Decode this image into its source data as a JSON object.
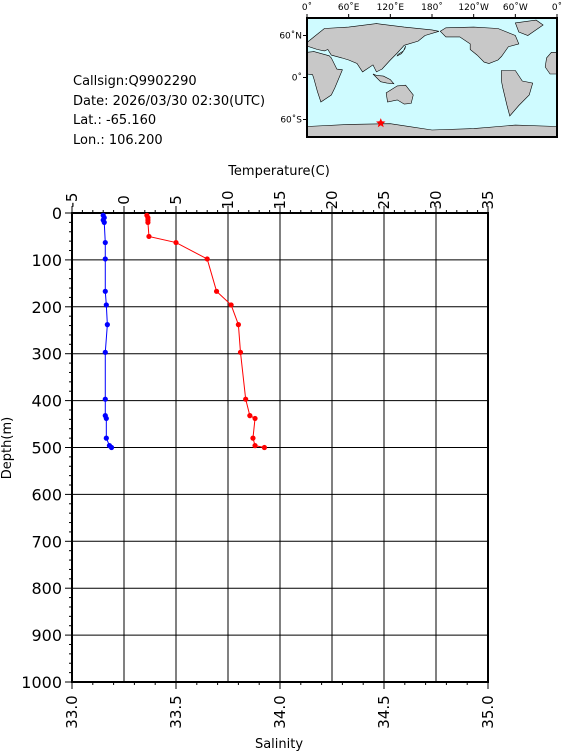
{
  "station": {
    "callsign_line": "Callsign:Q9902290",
    "date_line": "Date:  2026/03/30 02:30(UTC)",
    "lat_line": "Lat.:  -65.160",
    "lon_line": "Lon.:  106.200"
  },
  "map": {
    "lon_ticks": [
      "0˚",
      "60˚E",
      "120˚E",
      "180˚",
      "120˚W",
      "60˚W",
      "0˚"
    ],
    "lat_ticks": [
      "60˚N",
      "0˚",
      "60˚S"
    ],
    "ocean_color": "#cffbff",
    "land_color": "#c8c8c8",
    "marker": {
      "lon": 106.2,
      "lat": -65.16,
      "color": "#ff0000",
      "symbol": "star"
    }
  },
  "chart_data": {
    "type": "line",
    "xlabel_top": "Temperature(C)",
    "xlabel_bottom": "Salinity",
    "ylabel": "Depth(m)",
    "temperature_axis": {
      "range": [
        -5,
        35
      ],
      "ticks": [
        "-5",
        "0",
        "5",
        "10",
        "15",
        "20",
        "25",
        "30",
        "35"
      ]
    },
    "salinity_axis": {
      "range": [
        33.0,
        35.0
      ],
      "ticks": [
        "33.0",
        "33.5",
        "34.0",
        "34.5",
        "35.0"
      ]
    },
    "depth_axis": {
      "range": [
        0,
        1000
      ],
      "inverted": true,
      "ticks": [
        "0",
        "100",
        "200",
        "300",
        "400",
        "500",
        "600",
        "700",
        "800",
        "900",
        "1000"
      ]
    },
    "grid": true,
    "series": [
      {
        "name": "Temperature",
        "axis": "temperature",
        "color": "#ff0000",
        "points": [
          [
            2.2,
            5
          ],
          [
            2.3,
            10
          ],
          [
            2.3,
            15
          ],
          [
            2.3,
            20
          ],
          [
            2.4,
            50
          ],
          [
            5.0,
            63
          ],
          [
            8.0,
            98
          ],
          [
            8.9,
            167
          ],
          [
            10.3,
            196
          ],
          [
            11.0,
            238
          ],
          [
            11.2,
            297
          ],
          [
            11.7,
            397
          ],
          [
            12.1,
            432
          ],
          [
            12.6,
            438
          ],
          [
            12.4,
            480
          ],
          [
            12.6,
            496
          ],
          [
            13.5,
            500
          ]
        ]
      },
      {
        "name": "Salinity",
        "axis": "salinity",
        "color": "#0000ff",
        "points": [
          [
            33.15,
            5
          ],
          [
            33.155,
            10
          ],
          [
            33.15,
            15
          ],
          [
            33.155,
            20
          ],
          [
            33.16,
            63
          ],
          [
            33.16,
            98
          ],
          [
            33.16,
            167
          ],
          [
            33.165,
            196
          ],
          [
            33.17,
            238
          ],
          [
            33.16,
            297
          ],
          [
            33.16,
            397
          ],
          [
            33.16,
            432
          ],
          [
            33.165,
            438
          ],
          [
            33.165,
            480
          ],
          [
            33.18,
            496
          ],
          [
            33.19,
            500
          ]
        ]
      }
    ]
  }
}
